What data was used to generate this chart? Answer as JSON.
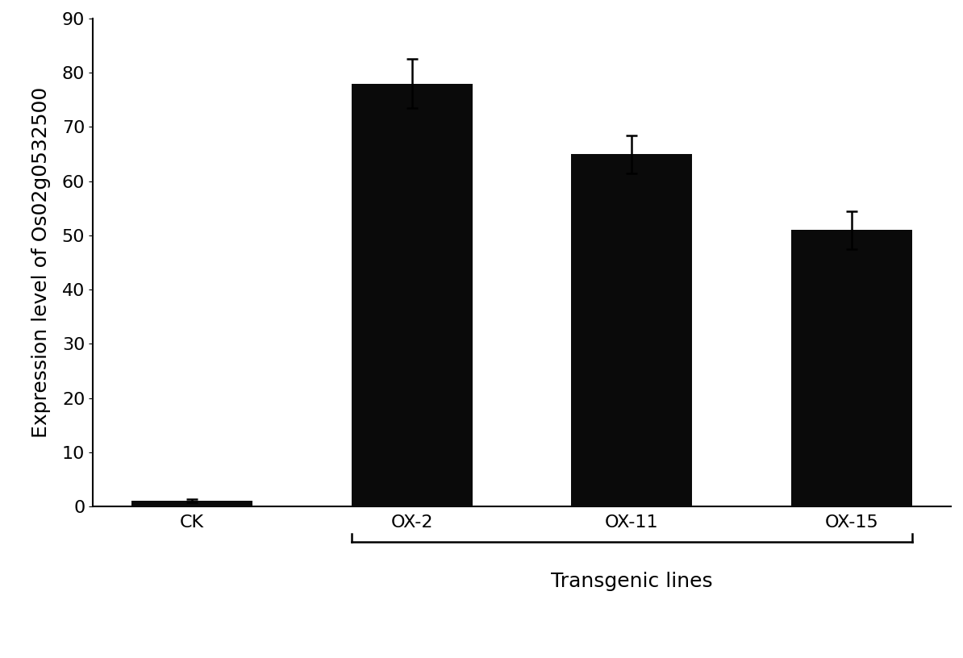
{
  "categories": [
    "CK",
    "OX-2",
    "OX-11",
    "OX-15"
  ],
  "values": [
    1.0,
    78.0,
    65.0,
    51.0
  ],
  "errors": [
    0.3,
    4.5,
    3.5,
    3.5
  ],
  "bar_color": "#0a0a0a",
  "bar_width": 0.55,
  "ylabel": "Expression level of Os02g0532500",
  "transgenic_label": "Transgenic lines",
  "transgenic_categories": [
    "OX-2",
    "OX-11",
    "OX-15"
  ],
  "ylim": [
    0,
    90
  ],
  "yticks": [
    0,
    10,
    20,
    30,
    40,
    50,
    60,
    70,
    80,
    90
  ],
  "background_color": "#ffffff",
  "tick_fontsize": 16,
  "label_fontsize": 18,
  "transgenic_fontsize": 18,
  "ylabel_fontsize": 18
}
